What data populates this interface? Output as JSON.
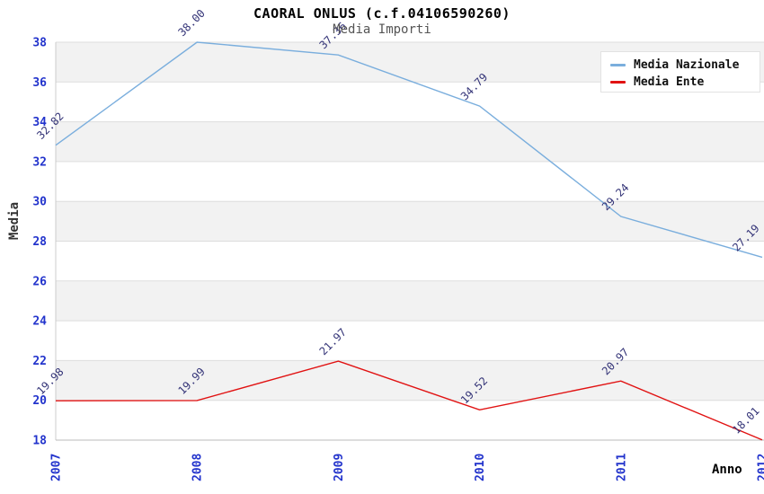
{
  "header": {
    "title": "CAORAL ONLUS (c.f.04106590260)",
    "subtitle": "Media Importi"
  },
  "axes": {
    "y_title": "Media",
    "x_title": "Anno"
  },
  "legend": {
    "items": [
      {
        "label": "Media Nazionale",
        "color": "#7aaedd"
      },
      {
        "label": "Media Ente",
        "color": "#e11212"
      }
    ]
  },
  "chart_data": {
    "type": "line",
    "title": "CAORAL ONLUS (c.f.04106590260)",
    "subtitle": "Media Importi",
    "xlabel": "Anno",
    "ylabel": "Media",
    "categories": [
      "2007",
      "2008",
      "2009",
      "2010",
      "2011",
      "2012"
    ],
    "series": [
      {
        "name": "Media Nazionale",
        "color": "#7aaedd",
        "values": [
          32.82,
          38.0,
          37.36,
          34.79,
          29.24,
          27.19
        ]
      },
      {
        "name": "Media Ente",
        "color": "#e11212",
        "values": [
          19.98,
          19.99,
          21.97,
          19.52,
          20.97,
          18.01
        ]
      }
    ],
    "ylim": [
      18,
      38
    ],
    "ytick_step": 2,
    "grid": "horizontal",
    "band_colors": [
      "#f2f2f2",
      "#ffffff"
    ],
    "gridline_color": "#dddddd",
    "axis_line_color": "#bbbbbb",
    "tick_color": "#2233cc",
    "point_label_color": "#333377",
    "legend_position": "top-right"
  }
}
